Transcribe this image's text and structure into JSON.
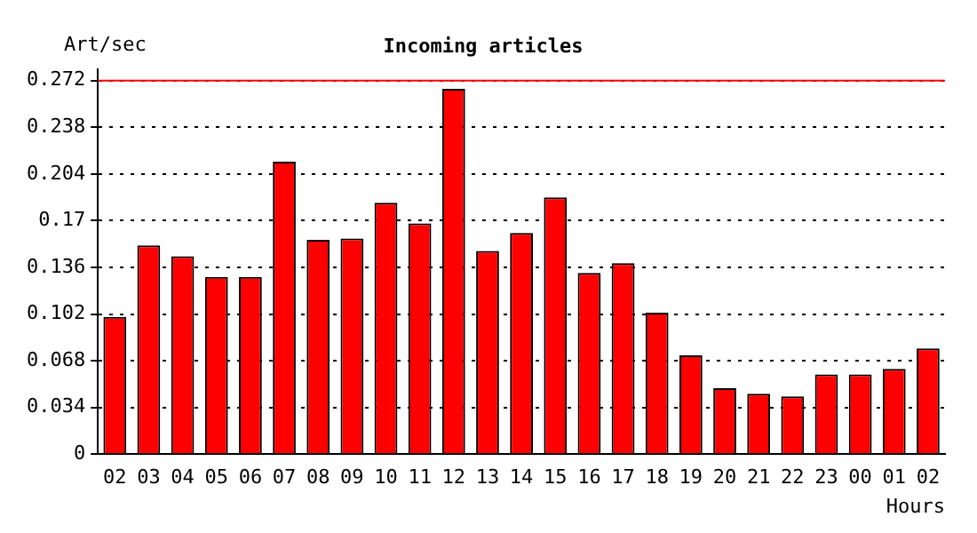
{
  "chart_data": {
    "type": "bar",
    "title": "Incoming articles",
    "ylabel": "Art/sec",
    "xlabel": "Hours",
    "categories": [
      "02",
      "03",
      "04",
      "05",
      "06",
      "07",
      "08",
      "09",
      "10",
      "11",
      "12",
      "13",
      "14",
      "15",
      "16",
      "17",
      "18",
      "19",
      "20",
      "21",
      "22",
      "23",
      "00",
      "01",
      "02"
    ],
    "values": [
      0.1,
      0.152,
      0.144,
      0.129,
      0.129,
      0.213,
      0.156,
      0.157,
      0.183,
      0.168,
      0.266,
      0.148,
      0.161,
      0.187,
      0.132,
      0.139,
      0.103,
      0.072,
      0.048,
      0.044,
      0.042,
      0.058,
      0.058,
      0.062,
      0.077
    ],
    "color": "#ff0000",
    "ylim": [
      0,
      0.28
    ],
    "yticks": [
      0,
      0.034,
      0.068,
      0.102,
      0.136,
      0.17,
      0.204,
      0.238,
      0.272
    ],
    "grid": "y",
    "line_style": "dotted",
    "ref_lines": [
      {
        "axis": "y",
        "value": 0.272,
        "color": "#ff0000"
      }
    ]
  }
}
